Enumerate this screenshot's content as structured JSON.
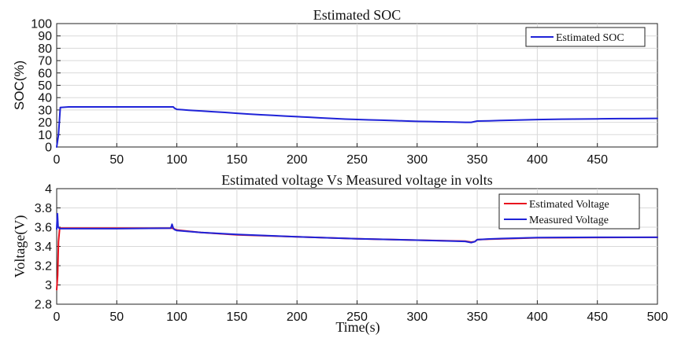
{
  "chart_data": [
    {
      "id": "soc",
      "type": "line",
      "title": "Estimated SOC",
      "xlabel": "",
      "ylabel": "SOC(%)",
      "xlim": [
        0,
        500
      ],
      "ylim": [
        0,
        100
      ],
      "xticks": [
        0,
        50,
        100,
        150,
        200,
        250,
        300,
        350,
        400,
        450
      ],
      "yticks": [
        0,
        10,
        20,
        30,
        40,
        50,
        60,
        70,
        80,
        90,
        100
      ],
      "grid": true,
      "legend_position": "top-right",
      "series": [
        {
          "name": "Estimated SOC",
          "color": "#1f23d8",
          "x": [
            0,
            1.5,
            3,
            10,
            20,
            50,
            70,
            97,
            98,
            100,
            105,
            110,
            120,
            130,
            140,
            150,
            160,
            170,
            180,
            190,
            200,
            210,
            220,
            230,
            240,
            250,
            260,
            270,
            280,
            290,
            300,
            310,
            320,
            330,
            340,
            345,
            350,
            360,
            370,
            380,
            390,
            400,
            410,
            420,
            430,
            440,
            450,
            460,
            470,
            480,
            490,
            500
          ],
          "values": [
            0,
            10,
            32,
            32.5,
            32.5,
            32.5,
            32.5,
            32.5,
            31.5,
            30.5,
            30.2,
            29.8,
            29.2,
            28.6,
            28,
            27.3,
            26.7,
            26.1,
            25.6,
            25.1,
            24.6,
            24.1,
            23.6,
            23.1,
            22.6,
            22.3,
            22,
            21.7,
            21.4,
            21.1,
            20.8,
            20.6,
            20.4,
            20.2,
            20,
            20,
            21,
            21.2,
            21.5,
            21.7,
            22,
            22.2,
            22.4,
            22.5,
            22.6,
            22.7,
            22.8,
            22.9,
            23,
            23,
            23.1,
            23.2
          ]
        }
      ]
    },
    {
      "id": "voltage",
      "type": "line",
      "title": "Estimated voltage Vs Measured voltage in volts",
      "xlabel": "Time(s)",
      "ylabel": "Voltage(V)",
      "xlim": [
        0,
        500
      ],
      "ylim": [
        2.8,
        4
      ],
      "xticks": [
        0,
        50,
        100,
        150,
        200,
        250,
        300,
        350,
        400,
        450,
        500
      ],
      "yticks": [
        2.8,
        3,
        3.2,
        3.4,
        3.6,
        3.8,
        4
      ],
      "grid": true,
      "legend_position": "top-right",
      "series": [
        {
          "name": "Estimated Voltage",
          "color": "#e8111e",
          "x": [
            0,
            0.8,
            1.5,
            2.5,
            10,
            50,
            96,
            100,
            120,
            150,
            200,
            250,
            300,
            340,
            345,
            348,
            350,
            360,
            400,
            450,
            500
          ],
          "values": [
            2.95,
            3.1,
            3.45,
            3.59,
            3.59,
            3.59,
            3.59,
            3.57,
            3.545,
            3.52,
            3.5,
            3.48,
            3.465,
            3.455,
            3.445,
            3.45,
            3.47,
            3.475,
            3.49,
            3.493,
            3.495
          ]
        },
        {
          "name": "Measured Voltage",
          "color": "#1f23d8",
          "x": [
            0,
            0.6,
            1.2,
            2.5,
            10,
            50,
            95,
            96,
            97,
            98,
            100,
            120,
            150,
            200,
            250,
            300,
            340,
            345,
            348,
            350,
            360,
            400,
            450,
            500
          ],
          "values": [
            3.58,
            3.74,
            3.6,
            3.585,
            3.585,
            3.585,
            3.59,
            3.63,
            3.59,
            3.575,
            3.565,
            3.545,
            3.525,
            3.5,
            3.48,
            3.465,
            3.452,
            3.44,
            3.45,
            3.47,
            3.478,
            3.492,
            3.495,
            3.495
          ]
        }
      ]
    }
  ]
}
